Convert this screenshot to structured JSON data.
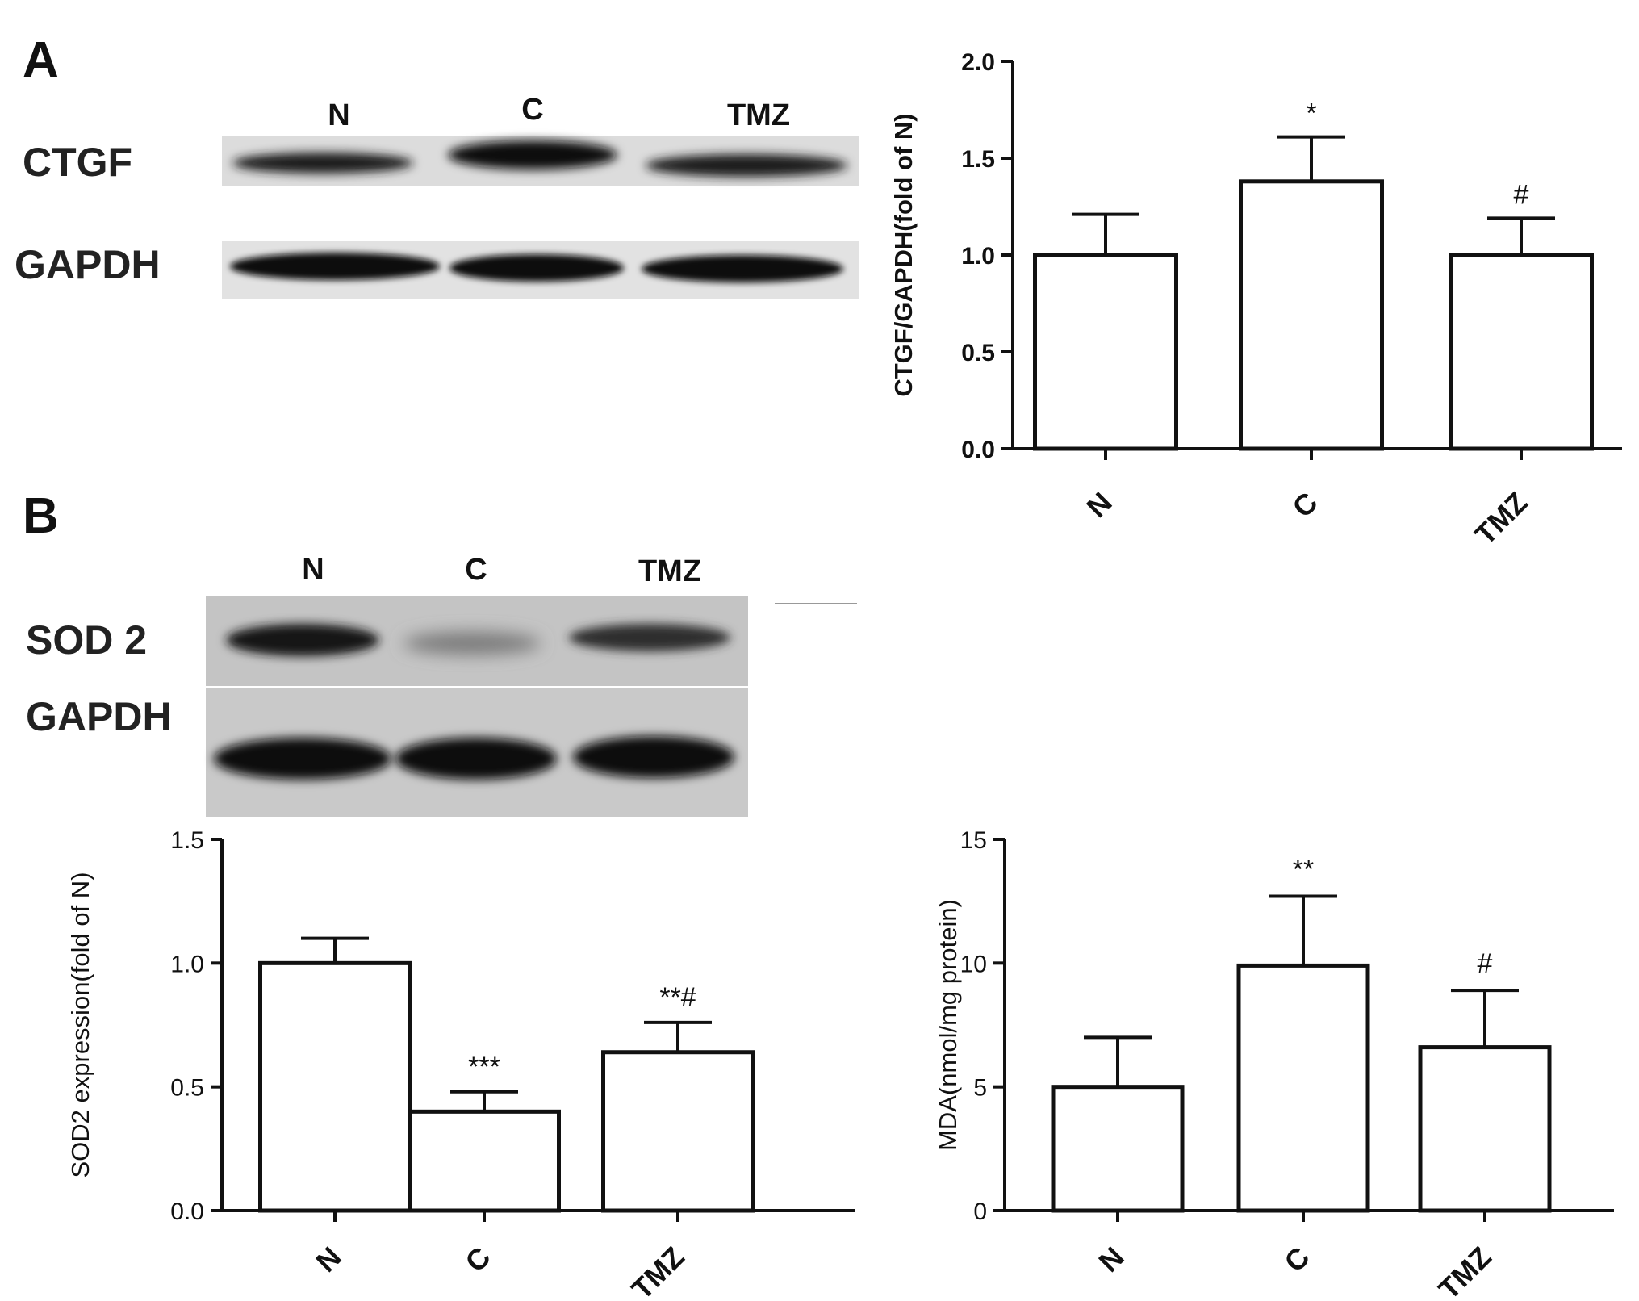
{
  "panels": {
    "A": {
      "letter": "A",
      "blot": {
        "lanes": [
          "N",
          "C",
          "TMZ"
        ],
        "rows": [
          "CTGF",
          "GAPDH"
        ]
      }
    },
    "B": {
      "letter": "B",
      "blot": {
        "lanes": [
          "N",
          "C",
          "TMZ"
        ],
        "rows": [
          "SOD 2",
          "GAPDH"
        ]
      }
    }
  },
  "chart_data": [
    {
      "type": "bar",
      "categories": [
        "N",
        "C",
        "TMZ"
      ],
      "values": [
        1.0,
        1.38,
        1.0
      ],
      "errors": [
        0.21,
        0.23,
        0.19
      ],
      "annotations": [
        "",
        "*",
        "#"
      ],
      "ylabel": "CTGF/GAPDH(fold of N)",
      "ylim": [
        0,
        2.0
      ],
      "yticks": [
        "0.0",
        "0.5",
        "1.0",
        "1.5",
        "2.0"
      ],
      "ytick_values": [
        0,
        0.5,
        1.0,
        1.5,
        2.0
      ]
    },
    {
      "type": "bar",
      "categories": [
        "N",
        "C",
        "TMZ"
      ],
      "values": [
        1.0,
        0.4,
        0.64
      ],
      "errors": [
        0.1,
        0.08,
        0.12
      ],
      "annotations": [
        "",
        "***",
        "**#"
      ],
      "ylabel": "SOD2 expression(fold of N)",
      "ylim": [
        0,
        1.5
      ],
      "yticks": [
        "0.0",
        "0.5",
        "1.0",
        "1.5"
      ],
      "ytick_values": [
        0,
        0.5,
        1.0,
        1.5
      ]
    },
    {
      "type": "bar",
      "categories": [
        "N",
        "C",
        "TMZ"
      ],
      "values": [
        5.0,
        9.9,
        6.6
      ],
      "errors": [
        2.0,
        2.8,
        2.3
      ],
      "annotations": [
        "",
        "**",
        "#"
      ],
      "ylabel": "MDA(nmol/mg protein)",
      "ylim": [
        0,
        15
      ],
      "yticks": [
        "0",
        "5",
        "10",
        "15"
      ],
      "ytick_values": [
        0,
        5,
        10,
        15
      ]
    }
  ],
  "colors": {
    "bar_fill": "#ffffff",
    "bar_stroke": "#111111"
  }
}
